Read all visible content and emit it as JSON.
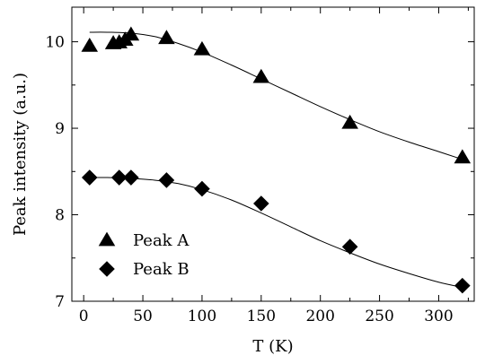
{
  "chart_data": {
    "type": "scatter",
    "title": "",
    "xlabel": "T   (K)",
    "ylabel": "Peak intensity  (a.u.)",
    "xlim": [
      -10,
      330
    ],
    "ylim": [
      7,
      10.4
    ],
    "xticks": [
      0,
      50,
      100,
      150,
      200,
      250,
      300
    ],
    "yticks": [
      7,
      8,
      9,
      10
    ],
    "grid": false,
    "legend": "bottom-left",
    "series": [
      {
        "name": "Peak A",
        "marker": "triangle",
        "x": [
          5,
          25,
          30,
          35,
          40,
          70,
          100,
          150,
          225,
          320
        ],
        "y": [
          9.95,
          9.98,
          9.99,
          10.02,
          10.08,
          10.04,
          9.91,
          9.59,
          9.06,
          8.66
        ],
        "fit_x": [
          5,
          20,
          40,
          60,
          80,
          100,
          125,
          150,
          175,
          200,
          225,
          250,
          275,
          300,
          320
        ],
        "fit_y": [
          10.11,
          10.11,
          10.1,
          10.06,
          9.98,
          9.88,
          9.73,
          9.57,
          9.41,
          9.25,
          9.1,
          8.96,
          8.84,
          8.73,
          8.64
        ]
      },
      {
        "name": "Peak B",
        "marker": "diamond",
        "x": [
          5,
          30,
          40,
          70,
          100,
          150,
          225,
          320
        ],
        "y": [
          8.43,
          8.43,
          8.43,
          8.4,
          8.3,
          8.13,
          7.63,
          7.18
        ],
        "fit_x": [
          5,
          20,
          40,
          60,
          80,
          100,
          125,
          150,
          175,
          200,
          225,
          250,
          275,
          300,
          320
        ],
        "fit_y": [
          8.43,
          8.43,
          8.42,
          8.4,
          8.36,
          8.29,
          8.17,
          8.02,
          7.86,
          7.7,
          7.56,
          7.43,
          7.32,
          7.22,
          7.16
        ]
      }
    ]
  }
}
